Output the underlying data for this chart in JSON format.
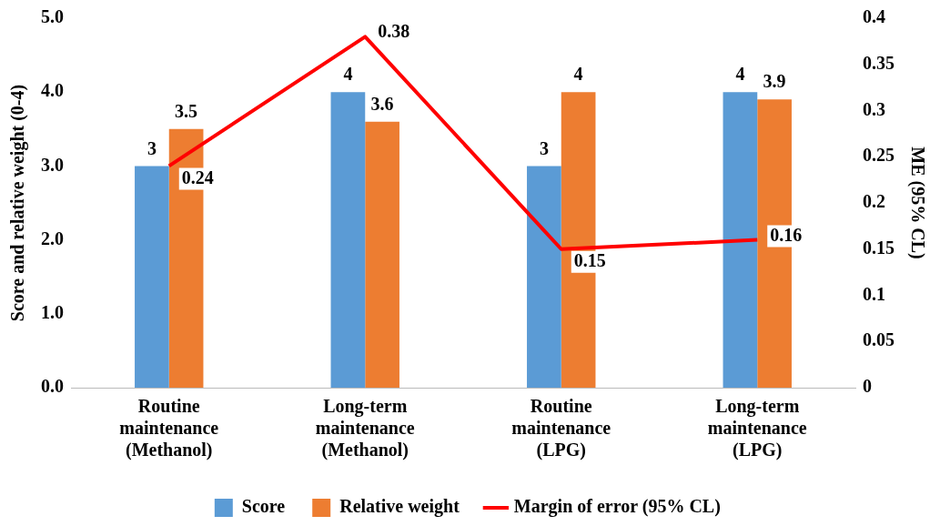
{
  "chart_data": {
    "type": "bar",
    "categories": [
      "Routine maintenance (Methanol)",
      "Long-term maintenance (Methanol)",
      "Routine maintenance (LPG)",
      "Long-term maintenance (LPG)"
    ],
    "series": [
      {
        "name": "Score",
        "color": "#5b9bd5",
        "values": [
          3,
          4,
          3,
          4
        ]
      },
      {
        "name": "Relative weight",
        "color": "#ed7d31",
        "values": [
          3.5,
          3.6,
          4,
          3.9
        ]
      },
      {
        "name": "Margin of error (95% CL)",
        "type": "line",
        "axis": "y2",
        "color": "#ff0000",
        "values": [
          0.24,
          0.38,
          0.15,
          0.16
        ],
        "marker": "none"
      }
    ],
    "ylabel": "Score and relative weight (0-4)",
    "y2label": "ME (95% CL)",
    "ylim": [
      0,
      5
    ],
    "yticks": [
      {
        "value": 0,
        "label": "0.0"
      },
      {
        "value": 1,
        "label": "1.0"
      },
      {
        "value": 2,
        "label": "2.0"
      },
      {
        "value": 3,
        "label": "3.0"
      },
      {
        "value": 4,
        "label": "4.0"
      },
      {
        "value": 5,
        "label": "5.0"
      }
    ],
    "y2lim": [
      0,
      0.4
    ],
    "y2ticks": [
      0,
      0.05,
      0.1,
      0.15,
      0.2,
      0.25,
      0.3,
      0.35,
      0.4
    ],
    "grid": false,
    "legend": "bottom",
    "data_labels": true
  }
}
